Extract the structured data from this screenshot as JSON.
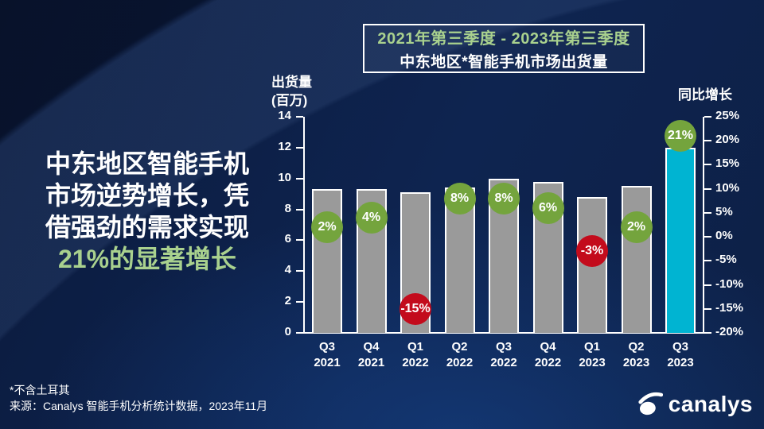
{
  "slide": {
    "title_box": {
      "period": "2021年第三季度 - 2023年第三季度",
      "title": "中东地区*智能手机市场出货量"
    },
    "headline": {
      "lines": [
        "中东地区智能手机",
        "市场逆势增长，凭",
        "借强劲的需求实现",
        "21%的显著增长"
      ],
      "accent_line_index": 3
    },
    "footnote": "*不含土耳其",
    "source": "来源：Canalys 智能手机分析统计数据，2023年11月",
    "logo_text": "canalys"
  },
  "chart_data": {
    "type": "bar",
    "title": "中东地区*智能手机市场出货量",
    "subtitle": "2021年第三季度 - 2023年第三季度",
    "categories": [
      "Q3 2021",
      "Q4 2021",
      "Q1 2022",
      "Q2 2022",
      "Q3 2022",
      "Q4 2022",
      "Q1 2023",
      "Q2 2023",
      "Q3 2023"
    ],
    "series": [
      {
        "name": "出货量(百万)",
        "type": "bar",
        "axis": "left",
        "values": [
          9.3,
          9.3,
          9.1,
          9.4,
          10.0,
          9.8,
          8.8,
          9.5,
          12.0
        ]
      },
      {
        "name": "同比增长",
        "type": "bubble",
        "axis": "right",
        "unit": "%",
        "values": [
          2,
          4,
          -15,
          8,
          8,
          6,
          -3,
          2,
          21
        ],
        "labels": [
          "2%",
          "4%",
          "-15%",
          "8%",
          "8%",
          "6%",
          "-3%",
          "2%",
          "21%"
        ]
      }
    ],
    "left_axis": {
      "label_line1": "出货量",
      "label_line2": "(百万)",
      "min": 0,
      "max": 14,
      "ticks": [
        0,
        2,
        4,
        6,
        8,
        10,
        12,
        14
      ]
    },
    "right_axis": {
      "label": "同比增长",
      "min": -20,
      "max": 25,
      "unit": "%",
      "ticks": [
        -20,
        -15,
        -10,
        -5,
        0,
        5,
        10,
        15,
        20,
        25
      ]
    },
    "highlight_index": 8,
    "colors": {
      "bar": "#9a9a9a",
      "bar_highlight": "#00b4d2",
      "bubble_positive": "#74a43d",
      "bubble_negative": "#c30b1c",
      "accent_green_text": "#a9d18e",
      "axis": "#ffffff"
    },
    "grid": false,
    "legend": false
  }
}
